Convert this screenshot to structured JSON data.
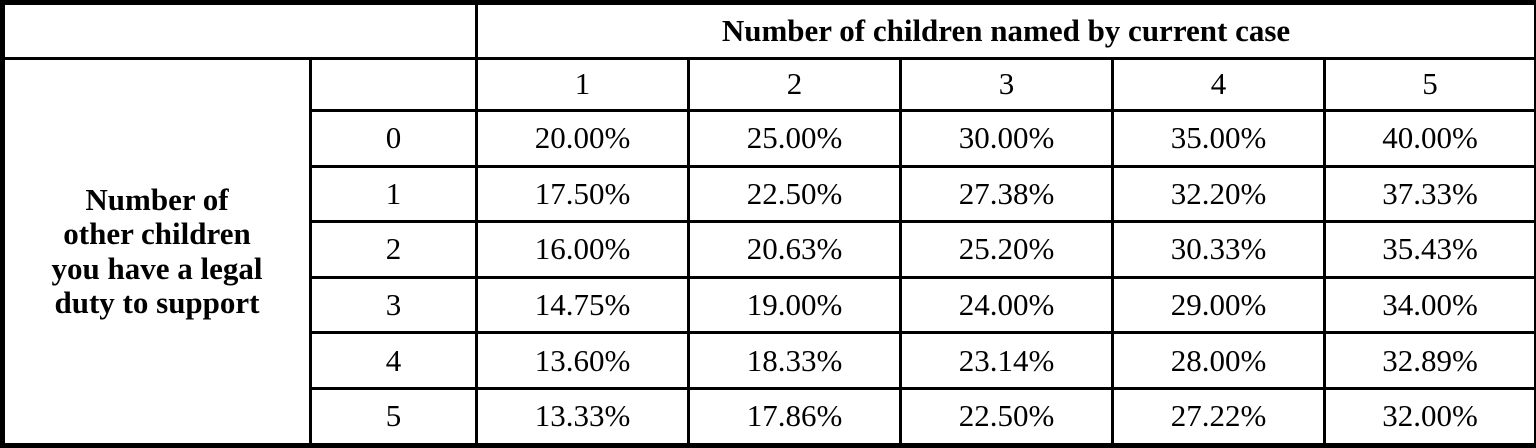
{
  "table": {
    "top_header": "Number of children named by current case",
    "left_header": "Number of\nother children\nyou have a legal\nduty to support",
    "column_headers": [
      "1",
      "2",
      "3",
      "4",
      "5"
    ],
    "row_headers": [
      "0",
      "1",
      "2",
      "3",
      "4",
      "5"
    ],
    "rows": [
      [
        "20.00%",
        "25.00%",
        "30.00%",
        "35.00%",
        "40.00%"
      ],
      [
        "17.50%",
        "22.50%",
        "27.38%",
        "32.20%",
        "37.33%"
      ],
      [
        "16.00%",
        "20.63%",
        "25.20%",
        "30.33%",
        "35.43%"
      ],
      [
        "14.75%",
        "19.00%",
        "24.00%",
        "29.00%",
        "34.00%"
      ],
      [
        "13.60%",
        "18.33%",
        "23.14%",
        "28.00%",
        "32.89%"
      ],
      [
        "13.33%",
        "17.86%",
        "22.50%",
        "27.22%",
        "32.00%"
      ]
    ],
    "colors": {
      "border": "#000000",
      "text": "#000000",
      "background": "#ffffff"
    }
  }
}
